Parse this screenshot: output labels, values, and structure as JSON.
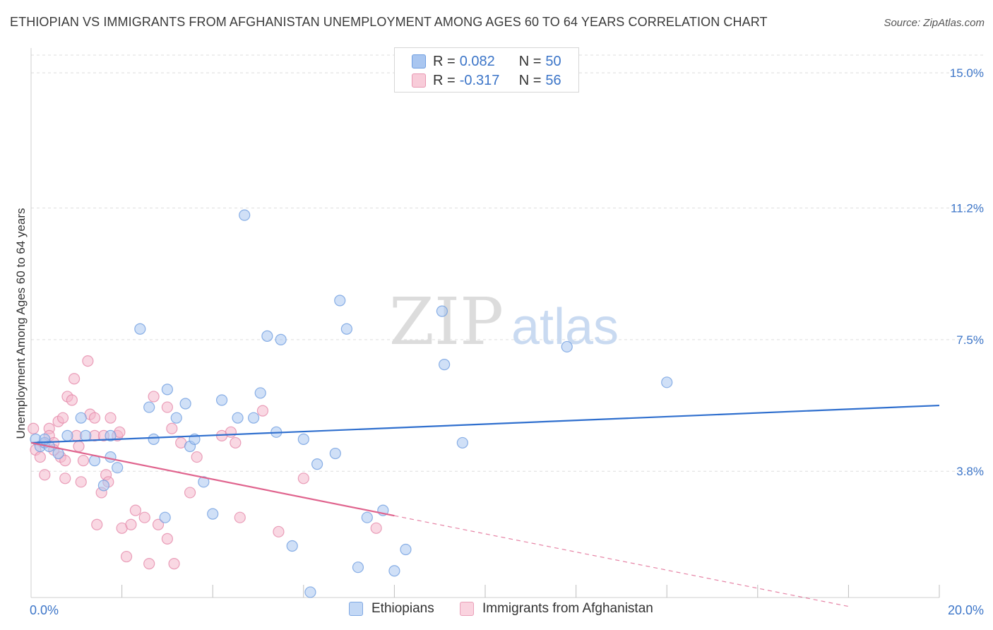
{
  "title": "ETHIOPIAN VS IMMIGRANTS FROM AFGHANISTAN UNEMPLOYMENT AMONG AGES 60 TO 64 YEARS CORRELATION CHART",
  "source": "Source: ZipAtlas.com",
  "watermark": {
    "zip": "ZIP",
    "atlas": "atlas"
  },
  "legend": {
    "rows": [
      {
        "r_label": "R = ",
        "r_value": "0.082",
        "n_label": "N = ",
        "n_value": "50"
      },
      {
        "r_label": "R = ",
        "r_value": "-0.317",
        "n_label": "N = ",
        "n_value": "56"
      }
    ]
  },
  "chart_data": {
    "type": "scatter",
    "title": "ETHIOPIAN VS IMMIGRANTS FROM AFGHANISTAN UNEMPLOYMENT AMONG AGES 60 TO 64 YEARS CORRELATION CHART",
    "xlabel": "",
    "ylabel": "Unemployment Among Ages 60 to 64 years",
    "xlim": [
      0,
      20
    ],
    "ylim": [
      0.25,
      15.5
    ],
    "x_tick_labels": [
      {
        "value": 0,
        "label": "0.0%"
      },
      {
        "value": 20,
        "label": "20.0%"
      }
    ],
    "y_tick_labels": [
      {
        "value": 3.8,
        "label": "3.8%"
      },
      {
        "value": 7.5,
        "label": "7.5%"
      },
      {
        "value": 11.2,
        "label": "11.2%"
      },
      {
        "value": 15.0,
        "label": "15.0%"
      }
    ],
    "x_minor_ticks": [
      2,
      4,
      6,
      8,
      10,
      12,
      14,
      16,
      18,
      20
    ],
    "grid": true,
    "colors": {
      "ethiopians_fill": "#a9c6f0",
      "ethiopians_line": "#2f6fce",
      "afghanistan_fill": "#f4b8cc",
      "afghanistan_line": "#e0648e",
      "tick_label": "#3c75c8",
      "grid": "#dddddd"
    },
    "series": [
      {
        "name": "Ethiopians",
        "points": [
          [
            0.1,
            4.7
          ],
          [
            0.2,
            4.5
          ],
          [
            0.3,
            4.6
          ],
          [
            0.4,
            4.5
          ],
          [
            0.6,
            4.3
          ],
          [
            0.8,
            4.8
          ],
          [
            1.1,
            5.3
          ],
          [
            1.2,
            4.8
          ],
          [
            1.4,
            4.1
          ],
          [
            1.6,
            3.4
          ],
          [
            1.75,
            4.2
          ],
          [
            1.75,
            4.8
          ],
          [
            1.9,
            3.9
          ],
          [
            2.4,
            7.8
          ],
          [
            2.6,
            5.6
          ],
          [
            2.7,
            4.7
          ],
          [
            2.95,
            2.5
          ],
          [
            3.0,
            6.1
          ],
          [
            3.2,
            5.3
          ],
          [
            3.4,
            5.7
          ],
          [
            3.5,
            4.5
          ],
          [
            3.6,
            4.7
          ],
          [
            3.8,
            3.5
          ],
          [
            4.0,
            2.6
          ],
          [
            4.2,
            5.8
          ],
          [
            4.55,
            5.3
          ],
          [
            4.7,
            11.0
          ],
          [
            4.9,
            5.3
          ],
          [
            5.05,
            6.0
          ],
          [
            5.2,
            7.6
          ],
          [
            5.4,
            4.9
          ],
          [
            5.5,
            7.5
          ],
          [
            5.75,
            1.7
          ],
          [
            6.0,
            4.7
          ],
          [
            6.15,
            0.4
          ],
          [
            6.3,
            4.0
          ],
          [
            6.7,
            4.3
          ],
          [
            6.8,
            8.6
          ],
          [
            6.95,
            7.8
          ],
          [
            7.2,
            1.1
          ],
          [
            7.4,
            2.5
          ],
          [
            7.75,
            2.7
          ],
          [
            8.0,
            1.0
          ],
          [
            8.25,
            1.6
          ],
          [
            9.05,
            8.3
          ],
          [
            9.1,
            6.8
          ],
          [
            9.5,
            4.6
          ],
          [
            11.8,
            7.3
          ],
          [
            14.0,
            6.3
          ],
          [
            0.3,
            4.7
          ]
        ],
        "trend": {
          "x": [
            0,
            20
          ],
          "y": [
            4.6,
            5.65
          ],
          "style": "solid"
        }
      },
      {
        "name": "Immigrants from Afghanistan",
        "points": [
          [
            0.05,
            5.0
          ],
          [
            0.1,
            4.4
          ],
          [
            0.2,
            4.2
          ],
          [
            0.3,
            4.6
          ],
          [
            0.3,
            3.7
          ],
          [
            0.4,
            5.0
          ],
          [
            0.4,
            4.8
          ],
          [
            0.5,
            4.6
          ],
          [
            0.6,
            5.2
          ],
          [
            0.65,
            4.2
          ],
          [
            0.7,
            5.3
          ],
          [
            0.75,
            4.1
          ],
          [
            0.75,
            3.6
          ],
          [
            0.8,
            5.9
          ],
          [
            0.9,
            5.8
          ],
          [
            0.95,
            6.4
          ],
          [
            1.0,
            4.8
          ],
          [
            1.05,
            4.5
          ],
          [
            1.1,
            3.5
          ],
          [
            1.15,
            4.1
          ],
          [
            1.25,
            6.9
          ],
          [
            1.3,
            5.4
          ],
          [
            1.4,
            5.3
          ],
          [
            1.4,
            4.8
          ],
          [
            1.45,
            2.3
          ],
          [
            1.55,
            3.2
          ],
          [
            1.6,
            4.8
          ],
          [
            1.65,
            3.7
          ],
          [
            1.7,
            3.5
          ],
          [
            1.75,
            5.3
          ],
          [
            1.9,
            4.8
          ],
          [
            1.95,
            4.9
          ],
          [
            2.0,
            2.2
          ],
          [
            2.1,
            1.4
          ],
          [
            2.2,
            2.3
          ],
          [
            2.3,
            2.7
          ],
          [
            2.5,
            2.5
          ],
          [
            2.6,
            1.2
          ],
          [
            2.7,
            5.9
          ],
          [
            2.8,
            2.3
          ],
          [
            3.0,
            5.6
          ],
          [
            3.0,
            1.9
          ],
          [
            3.1,
            5.0
          ],
          [
            3.15,
            1.2
          ],
          [
            3.3,
            4.6
          ],
          [
            3.5,
            3.2
          ],
          [
            3.65,
            4.2
          ],
          [
            4.2,
            4.8
          ],
          [
            4.4,
            4.9
          ],
          [
            4.5,
            4.6
          ],
          [
            4.6,
            2.5
          ],
          [
            5.1,
            5.5
          ],
          [
            5.45,
            2.1
          ],
          [
            6.0,
            3.6
          ],
          [
            7.6,
            2.2
          ],
          [
            0.5,
            4.4
          ]
        ],
        "trend": {
          "x": [
            0,
            8.0
          ],
          "y": [
            4.6,
            2.55
          ],
          "style": "solid"
        },
        "trend_extension": {
          "x": [
            8.0,
            18.0
          ],
          "y": [
            2.55,
            0.0
          ],
          "style": "dashed"
        }
      }
    ]
  },
  "bottom_legend": {
    "items": [
      {
        "label": "Ethiopians"
      },
      {
        "label": "Immigrants from Afghanistan"
      }
    ]
  }
}
